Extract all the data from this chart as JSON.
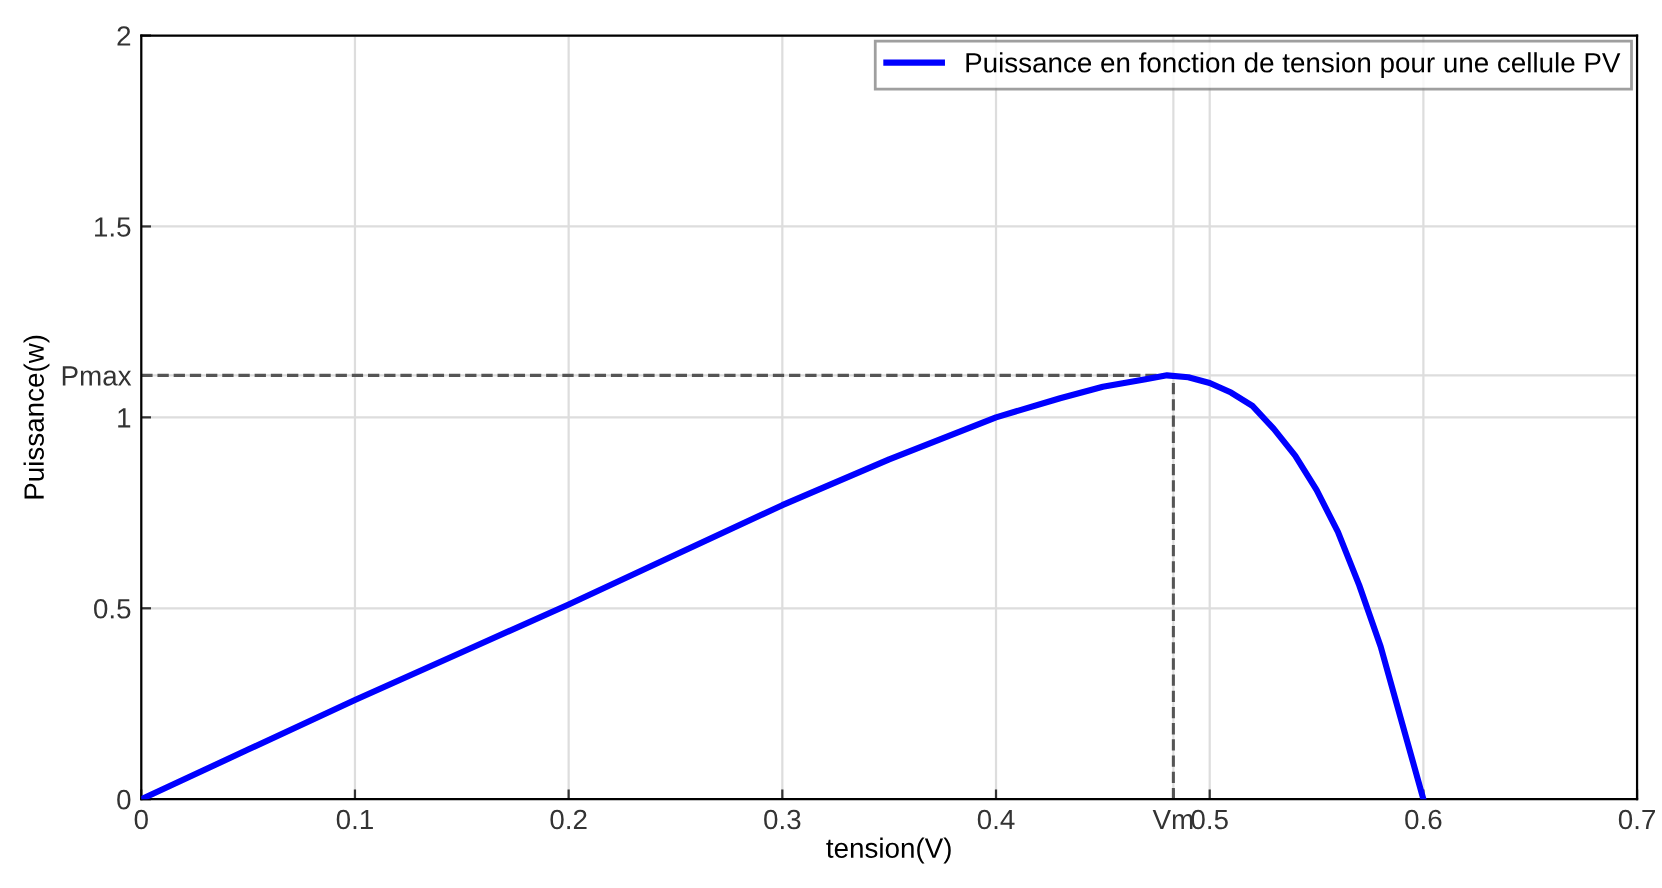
{
  "chart_data": {
    "type": "line",
    "xlabel": "tension(V)",
    "ylabel": "Puissance(w)",
    "x": [
      0,
      0.05,
      0.1,
      0.15,
      0.2,
      0.25,
      0.3,
      0.35,
      0.4,
      0.43,
      0.45,
      0.47,
      0.48,
      0.49,
      0.5,
      0.51,
      0.52,
      0.53,
      0.54,
      0.55,
      0.56,
      0.57,
      0.58,
      0.59,
      0.6
    ],
    "series": [
      {
        "name": "Puissance en fonction de tension pour une cellule PV",
        "color": "#0000ff",
        "values": [
          0,
          0.13,
          0.26,
          0.385,
          0.51,
          0.64,
          0.77,
          0.89,
          1.0,
          1.05,
          1.08,
          1.1,
          1.11,
          1.105,
          1.09,
          1.065,
          1.03,
          0.97,
          0.9,
          0.81,
          0.7,
          0.56,
          0.4,
          0.2,
          0
        ]
      }
    ],
    "xlim": [
      0,
      0.7
    ],
    "ylim": [
      0,
      2
    ],
    "xticks": [
      0,
      0.1,
      0.2,
      0.3,
      0.4,
      {
        "value": 0.483,
        "label": "Vm"
      },
      0.5,
      0.6,
      0.7
    ],
    "yticks": [
      0,
      0.5,
      1,
      {
        "value": 1.11,
        "label": "Pmax"
      },
      1.5,
      2
    ],
    "ref_lines": [
      {
        "axis": "x",
        "value": 0.483,
        "line_style": "dashed",
        "color": "#555555"
      },
      {
        "axis": "y",
        "value": 1.11,
        "line_style": "dashed",
        "color": "#555555"
      }
    ],
    "grid": true,
    "legend": "top right",
    "line_style": "solid",
    "marker": "none"
  }
}
